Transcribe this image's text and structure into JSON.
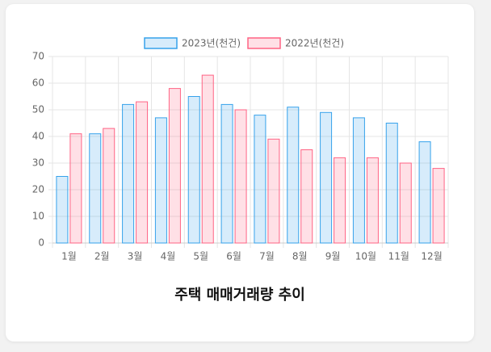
{
  "chart_data": {
    "type": "bar",
    "title": "주택 매매거래량 추이",
    "categories": [
      "1월",
      "2월",
      "3월",
      "4월",
      "5월",
      "6월",
      "7월",
      "8월",
      "9월",
      "10월",
      "11월",
      "12월"
    ],
    "series": [
      {
        "name": "2023년(천건)",
        "color": "#36a2eb",
        "values": [
          25,
          41,
          52,
          47,
          55,
          52,
          48,
          51,
          49,
          47,
          45,
          38
        ]
      },
      {
        "name": "2022년(천건)",
        "color": "#ff6384",
        "values": [
          41,
          43,
          53,
          58,
          63,
          50,
          39,
          35,
          32,
          32,
          30,
          28
        ]
      }
    ],
    "ylim": [
      0,
      70
    ],
    "yticks": [
      0,
      10,
      20,
      30,
      40,
      50,
      60,
      70
    ],
    "grid": true,
    "legend": "top"
  }
}
